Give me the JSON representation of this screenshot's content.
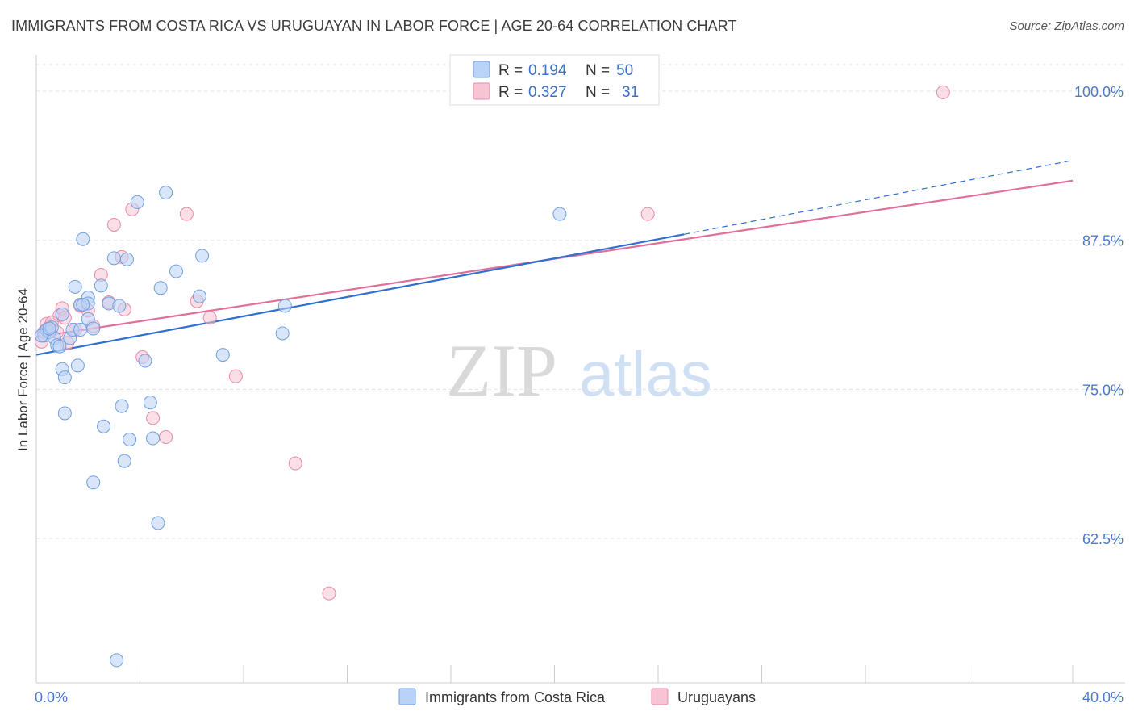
{
  "header": {
    "title": "IMMIGRANTS FROM COSTA RICA VS URUGUAYAN IN LABOR FORCE | AGE 20-64 CORRELATION CHART",
    "source": "Source: ZipAtlas.com"
  },
  "watermark": {
    "zip": "ZIP",
    "atlas": "atlas"
  },
  "colors": {
    "blue_fill": "#b9d2f5",
    "blue_stroke": "#6f9fe0",
    "blue_line": "#2f6fd0",
    "pink_fill": "#f7c4d4",
    "pink_stroke": "#e98aa8",
    "pink_line": "#e0709a",
    "label_blue": "#4a7ac7",
    "grid": "#e3e3e3"
  },
  "chart_data": {
    "type": "scatter",
    "title": "IMMIGRANTS FROM COSTA RICA VS URUGUAYAN IN LABOR FORCE | AGE 20-64 CORRELATION CHART",
    "xlabel": "",
    "ylabel": "In Labor Force | Age 20-64",
    "xlim": [
      0,
      40
    ],
    "ylim": [
      50.4,
      102.5
    ],
    "x_tick_labels": [
      "0.0%",
      "40.0%"
    ],
    "y_ticks": [
      62.5,
      75.0,
      87.5,
      100.0
    ],
    "y_tick_labels": [
      "62.5%",
      "75.0%",
      "87.5%",
      "100.0%"
    ],
    "grid": true,
    "legend_placement": "top-center",
    "legend": [
      {
        "r_label": "R =",
        "r": "0.194",
        "n_label": "N =",
        "n": "50"
      },
      {
        "r_label": "R =",
        "r": "0.327",
        "n_label": "N =",
        "n": "31"
      }
    ],
    "series": [
      {
        "name": "Immigrants from Costa Rica",
        "trend": {
          "x0": 0,
          "y0": 77.9,
          "x1": 25.0,
          "y1": 88.0,
          "dash_to_x": 40,
          "dash_to_y": 94.2
        },
        "points": [
          [
            0.3,
            79.5
          ],
          [
            0.4,
            80.0
          ],
          [
            0.5,
            79.8
          ],
          [
            0.6,
            80.2
          ],
          [
            0.7,
            79.3
          ],
          [
            0.8,
            78.7
          ],
          [
            0.9,
            78.6
          ],
          [
            1.0,
            81.3
          ],
          [
            1.0,
            76.7
          ],
          [
            1.1,
            73.0
          ],
          [
            1.1,
            76.0
          ],
          [
            1.3,
            79.3
          ],
          [
            1.4,
            80.0
          ],
          [
            1.5,
            83.6
          ],
          [
            1.6,
            77.0
          ],
          [
            1.7,
            82.1
          ],
          [
            1.7,
            80.0
          ],
          [
            1.8,
            87.6
          ],
          [
            2.0,
            80.9
          ],
          [
            2.0,
            82.7
          ],
          [
            2.0,
            82.2
          ],
          [
            2.2,
            80.1
          ],
          [
            2.2,
            67.2
          ],
          [
            2.5,
            83.7
          ],
          [
            2.6,
            71.9
          ],
          [
            2.8,
            82.2
          ],
          [
            3.0,
            86.0
          ],
          [
            3.1,
            52.3
          ],
          [
            3.2,
            82.0
          ],
          [
            3.3,
            73.6
          ],
          [
            3.4,
            69.0
          ],
          [
            3.5,
            85.9
          ],
          [
            3.6,
            70.8
          ],
          [
            3.9,
            90.7
          ],
          [
            4.2,
            77.4
          ],
          [
            4.4,
            73.9
          ],
          [
            4.5,
            70.9
          ],
          [
            4.7,
            63.8
          ],
          [
            4.8,
            83.5
          ],
          [
            5.0,
            91.5
          ],
          [
            5.4,
            84.9
          ],
          [
            6.3,
            82.8
          ],
          [
            6.4,
            86.2
          ],
          [
            7.2,
            77.9
          ],
          [
            9.5,
            79.7
          ],
          [
            9.6,
            82.0
          ],
          [
            20.2,
            89.7
          ],
          [
            0.2,
            79.5
          ],
          [
            0.5,
            80.1
          ],
          [
            1.8,
            82.1
          ]
        ]
      },
      {
        "name": "Uruguayans",
        "trend": {
          "x0": 0,
          "y0": 79.4,
          "x1": 40,
          "y1": 92.5
        },
        "points": [
          [
            0.2,
            79.0
          ],
          [
            0.3,
            79.8
          ],
          [
            0.4,
            80.5
          ],
          [
            0.5,
            80.2
          ],
          [
            0.6,
            80.6
          ],
          [
            0.8,
            79.8
          ],
          [
            0.9,
            81.2
          ],
          [
            1.0,
            81.8
          ],
          [
            1.1,
            81.0
          ],
          [
            1.2,
            78.9
          ],
          [
            1.5,
            80.0
          ],
          [
            1.7,
            82.0
          ],
          [
            2.0,
            81.6
          ],
          [
            2.2,
            80.3
          ],
          [
            2.5,
            84.6
          ],
          [
            2.8,
            82.3
          ],
          [
            3.0,
            88.8
          ],
          [
            3.3,
            86.1
          ],
          [
            3.4,
            81.7
          ],
          [
            3.7,
            90.1
          ],
          [
            4.1,
            77.7
          ],
          [
            4.5,
            72.6
          ],
          [
            5.0,
            71.0
          ],
          [
            5.8,
            89.7
          ],
          [
            6.2,
            82.4
          ],
          [
            6.7,
            81.0
          ],
          [
            7.7,
            76.1
          ],
          [
            10.0,
            68.8
          ],
          [
            11.3,
            57.9
          ],
          [
            23.6,
            89.7
          ],
          [
            35.0,
            99.9
          ]
        ]
      }
    ]
  }
}
